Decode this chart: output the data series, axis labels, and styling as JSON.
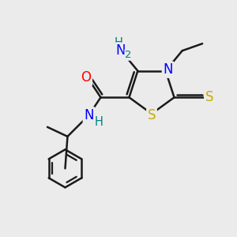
{
  "background_color": "#ebebeb",
  "atom_colors": {
    "N": "#0000ff",
    "O": "#ff0000",
    "S_ring": "#ccaa00",
    "S_thioxo": "#ccaa00",
    "H": "#008080"
  },
  "bond_color": "#1a1a1a",
  "bond_width": 1.8,
  "font_size": 12,
  "font_size_sub": 9.5
}
